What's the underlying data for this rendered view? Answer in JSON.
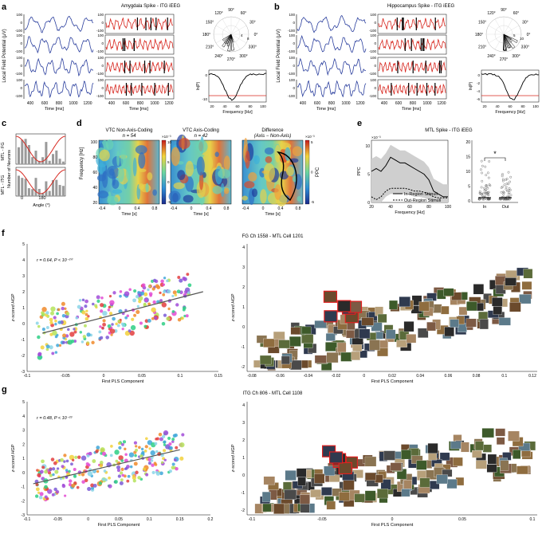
{
  "figure": {
    "panel_letters": [
      "a",
      "b",
      "c",
      "d",
      "e",
      "f",
      "g"
    ],
    "colors": {
      "lfp": "#2b3f9e",
      "spike": "#d7261e",
      "axis": "#000000",
      "fit": "#555555",
      "img_border": "#e02020"
    }
  },
  "panel_a": {
    "title": "Amygdala Spike - ITG iEEG",
    "ylabel": "Local Field Potential (μV)",
    "xlabel": "Time [ms]",
    "xticks": [
      "400",
      "600",
      "800",
      "1000",
      "1200"
    ],
    "yticks": [
      "100",
      "0",
      "-100"
    ],
    "polar_angles": [
      "90°",
      "60°",
      "30°",
      "0°",
      "330°",
      "300°",
      "270°",
      "240°",
      "210°",
      "180°",
      "150°",
      "120°"
    ],
    "polar_radii": [
      "4",
      "8"
    ],
    "lnp_label": "ln(P)",
    "lnp_yticks": [
      "0",
      "-10"
    ],
    "freq_xticks": [
      "20",
      "40",
      "60",
      "80",
      "100"
    ],
    "freq_xlabel": "Frequency [Hz]"
  },
  "panel_b": {
    "title": "Hippocampus Spike - ITG iEEG",
    "ylabel": "Local Field Potential (μV)",
    "xlabel": "Time [ms]",
    "xticks": [
      "400",
      "600",
      "800",
      "1000",
      "1200"
    ],
    "yticks": [
      "100",
      "0",
      "-100"
    ],
    "polar_angles": [
      "90°",
      "60°",
      "30°",
      "0°",
      "330°",
      "300°",
      "270°",
      "240°",
      "210°",
      "180°",
      "150°",
      "120°"
    ],
    "polar_radii": [
      "5",
      "10"
    ],
    "lnp_label": "ln(P)",
    "lnp_yticks": [
      "0",
      "-2",
      "-4",
      "-6"
    ],
    "freq_xticks": [
      "20",
      "40",
      "60",
      "80",
      "100"
    ],
    "freq_xlabel": "Frequency [Hz]"
  },
  "panel_c": {
    "label_top": "MTL - FG",
    "label_bottom": "MTL - ITG",
    "ylabel": "Number of Neurons",
    "xlabel": "Angle (°)",
    "xticks": [
      "0",
      "180"
    ]
  },
  "panel_d": {
    "maps": [
      {
        "title": "VTC Non-Axis-Coding",
        "n": "n = 54"
      },
      {
        "title": "VTC Axis-Coding",
        "n": "n = 42"
      },
      {
        "title": "Difference",
        "n": "(Axis − Non-Axis)"
      }
    ],
    "ylabel": "Frequency [Hz]",
    "yticks": [
      "100",
      "80",
      "60",
      "40",
      "20"
    ],
    "xlabel": "Time [s]",
    "xticks": [
      "-0.4",
      "0",
      "0.4",
      "0.8"
    ],
    "cbar1_exp": "×10⁻³",
    "cbar1_ticks": [
      "10",
      "5",
      "0",
      "-5"
    ],
    "cbar2_exp": "×10⁻³",
    "cbar2_ticks": [
      "5",
      "0",
      "-5"
    ],
    "cbar_label": "PPC"
  },
  "panel_e": {
    "title": "MTL Spike - ITG iEEG",
    "ylabel": "PPC",
    "yexp": "×10⁻³",
    "yticks": [
      "10",
      "5",
      "0"
    ],
    "xticks": [
      "20",
      "40",
      "60",
      "80",
      "100"
    ],
    "xlabel": "Frequency [Hz]",
    "legend_in": "In-Region Stimuli",
    "legend_out": "Out-Region Stimuli",
    "bar_yticks": [
      "20",
      "15",
      "10",
      "5",
      "0"
    ],
    "bar_xticks": [
      "In",
      "Out"
    ],
    "star": "*"
  },
  "panel_f": {
    "title": "FG Ch 1558 - MTL Cell 1201",
    "stat": "r = 0.64, P < 10⁻²⁰",
    "ylabel": "z-scored HGP",
    "xlabel": "First PLS Component",
    "yticks": [
      "5",
      "4",
      "3",
      "2",
      "1",
      "0",
      "-1",
      "-2",
      "-3"
    ],
    "xticks": [
      "-0.1",
      "-0.05",
      "0",
      "0.05",
      "0.1",
      "0.15"
    ],
    "right_ylabel": "z-scored HGP",
    "right_yticks": [
      "4",
      "3",
      "2",
      "1",
      "0",
      "-1",
      "-2"
    ],
    "right_xticks": [
      "-0.08",
      "-0.06",
      "-0.04",
      "-0.02",
      "0",
      "0.02",
      "0.04",
      "0.06",
      "0.08",
      "0.1",
      "0.12"
    ],
    "right_xlabel": "First PLS Component"
  },
  "panel_g": {
    "title": "ITG Ch 806 - MTL Cell 1108",
    "stat": "r = 0.48, P < 10⁻²³",
    "ylabel": "z-scored HGP",
    "xlabel": "First PLS Component",
    "yticks": [
      "5",
      "4",
      "3",
      "2",
      "1",
      "0",
      "-1",
      "-2",
      "-3"
    ],
    "xticks": [
      "-0.1",
      "-0.05",
      "0",
      "0.05",
      "0.1",
      "0.15",
      "0.2"
    ],
    "right_ylabel": "z-scored HGP",
    "right_yticks": [
      "4",
      "3",
      "2",
      "1",
      "0",
      "-1",
      "-2"
    ],
    "right_xticks": [
      "-0.1",
      "-0.05",
      "0",
      "0.05",
      "0.1"
    ],
    "right_xlabel": "First PLS Component"
  },
  "chart_data": [
    {
      "type": "line",
      "panel": "e",
      "title": "MTL Spike - ITG iEEG",
      "xlabel": "Frequency [Hz]",
      "ylabel": "PPC",
      "x": [
        20,
        25,
        30,
        35,
        40,
        45,
        50,
        55,
        60,
        65,
        70,
        75,
        80,
        85,
        90,
        95,
        100
      ],
      "series": [
        {
          "name": "In-Region Stimuli",
          "values": [
            5.5,
            6,
            5.5,
            6.5,
            8,
            7.5,
            7,
            7,
            6.5,
            6,
            5.5,
            5,
            4,
            2,
            1.5,
            1,
            1
          ]
        },
        {
          "name": "Out-Region Stimuli",
          "values": [
            1,
            0.5,
            1,
            2,
            2.5,
            2.5,
            2.5,
            2.5,
            2.3,
            2,
            2,
            1.8,
            1.5,
            1,
            0.8,
            0.8,
            0.8
          ]
        }
      ],
      "xlim": [
        20,
        100
      ],
      "ylim": [
        0,
        11
      ]
    },
    {
      "type": "scatter",
      "panel": "f",
      "title": "FG Ch 1558 - MTL Cell 1201",
      "xlabel": "First PLS Component",
      "ylabel": "z-scored HGP",
      "xlim": [
        -0.1,
        0.15
      ],
      "ylim": [
        -3,
        5
      ],
      "r": 0.64,
      "fit": [
        [
          -0.08,
          -0.6
        ],
        [
          0.13,
          2.0
        ]
      ]
    },
    {
      "type": "scatter",
      "panel": "g",
      "title": "ITG Ch 806 - MTL Cell 1108",
      "xlabel": "First PLS Component",
      "ylabel": "z-scored HGP",
      "xlim": [
        -0.1,
        0.2
      ],
      "ylim": [
        -3,
        5
      ],
      "r": 0.48,
      "fit": [
        [
          -0.09,
          -0.8
        ],
        [
          0.15,
          1.6
        ]
      ]
    }
  ]
}
